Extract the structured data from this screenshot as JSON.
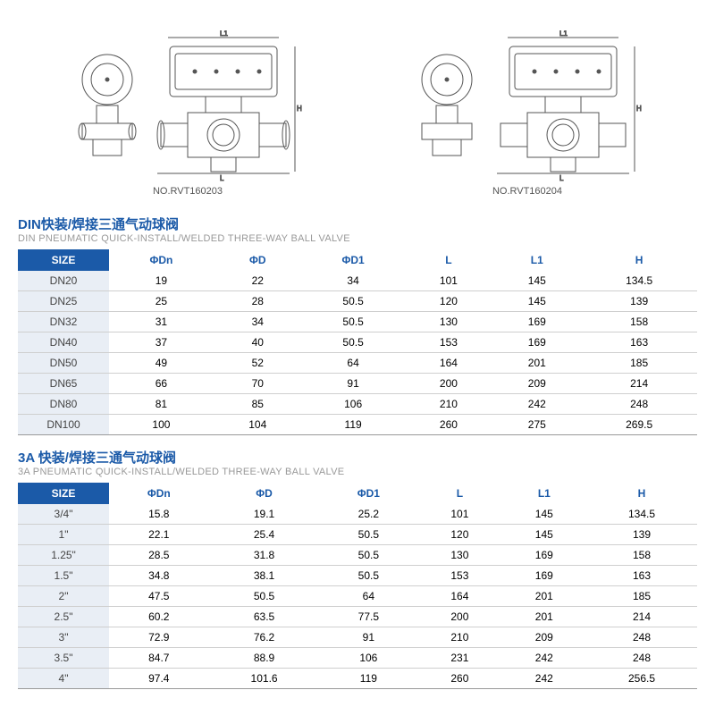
{
  "diagrams": {
    "left_caption": "NO.RVT160203",
    "right_caption": "NO.RVT160204"
  },
  "table1": {
    "title_cn": "DIN快装/焊接三通气动球阀",
    "title_en": "DIN PNEUMATIC QUICK-INSTALL/WELDED THREE-WAY BALL VALVE",
    "columns": [
      "SIZE",
      "ΦDn",
      "ΦD",
      "ΦD1",
      "L",
      "L1",
      "H"
    ],
    "rows": [
      [
        "DN20",
        "19",
        "22",
        "34",
        "101",
        "145",
        "134.5"
      ],
      [
        "DN25",
        "25",
        "28",
        "50.5",
        "120",
        "145",
        "139"
      ],
      [
        "DN32",
        "31",
        "34",
        "50.5",
        "130",
        "169",
        "158"
      ],
      [
        "DN40",
        "37",
        "40",
        "50.5",
        "153",
        "169",
        "163"
      ],
      [
        "DN50",
        "49",
        "52",
        "64",
        "164",
        "201",
        "185"
      ],
      [
        "DN65",
        "66",
        "70",
        "91",
        "200",
        "209",
        "214"
      ],
      [
        "DN80",
        "81",
        "85",
        "106",
        "210",
        "242",
        "248"
      ],
      [
        "DN100",
        "100",
        "104",
        "119",
        "260",
        "275",
        "269.5"
      ]
    ]
  },
  "table2": {
    "title_cn": "3A 快装/焊接三通气动球阀",
    "title_en": "3A PNEUMATIC QUICK-INSTALL/WELDED THREE-WAY BALL VALVE",
    "columns": [
      "SIZE",
      "ΦDn",
      "ΦD",
      "ΦD1",
      "L",
      "L1",
      "H"
    ],
    "rows": [
      [
        "3/4\"",
        "15.8",
        "19.1",
        "25.2",
        "101",
        "145",
        "134.5"
      ],
      [
        "1\"",
        "22.1",
        "25.4",
        "50.5",
        "120",
        "145",
        "139"
      ],
      [
        "1.25\"",
        "28.5",
        "31.8",
        "50.5",
        "130",
        "169",
        "158"
      ],
      [
        "1.5\"",
        "34.8",
        "38.1",
        "50.5",
        "153",
        "169",
        "163"
      ],
      [
        "2\"",
        "47.5",
        "50.5",
        "64",
        "164",
        "201",
        "185"
      ],
      [
        "2.5\"",
        "60.2",
        "63.5",
        "77.5",
        "200",
        "201",
        "214"
      ],
      [
        "3\"",
        "72.9",
        "76.2",
        "91",
        "210",
        "209",
        "248"
      ],
      [
        "3.5\"",
        "84.7",
        "88.9",
        "106",
        "231",
        "242",
        "248"
      ],
      [
        "4\"",
        "97.4",
        "101.6",
        "119",
        "260",
        "242",
        "256.5"
      ]
    ]
  },
  "colors": {
    "header_bg": "#1b5aa8",
    "size_col_bg": "#e9eef5",
    "border": "#cfcfcf"
  }
}
